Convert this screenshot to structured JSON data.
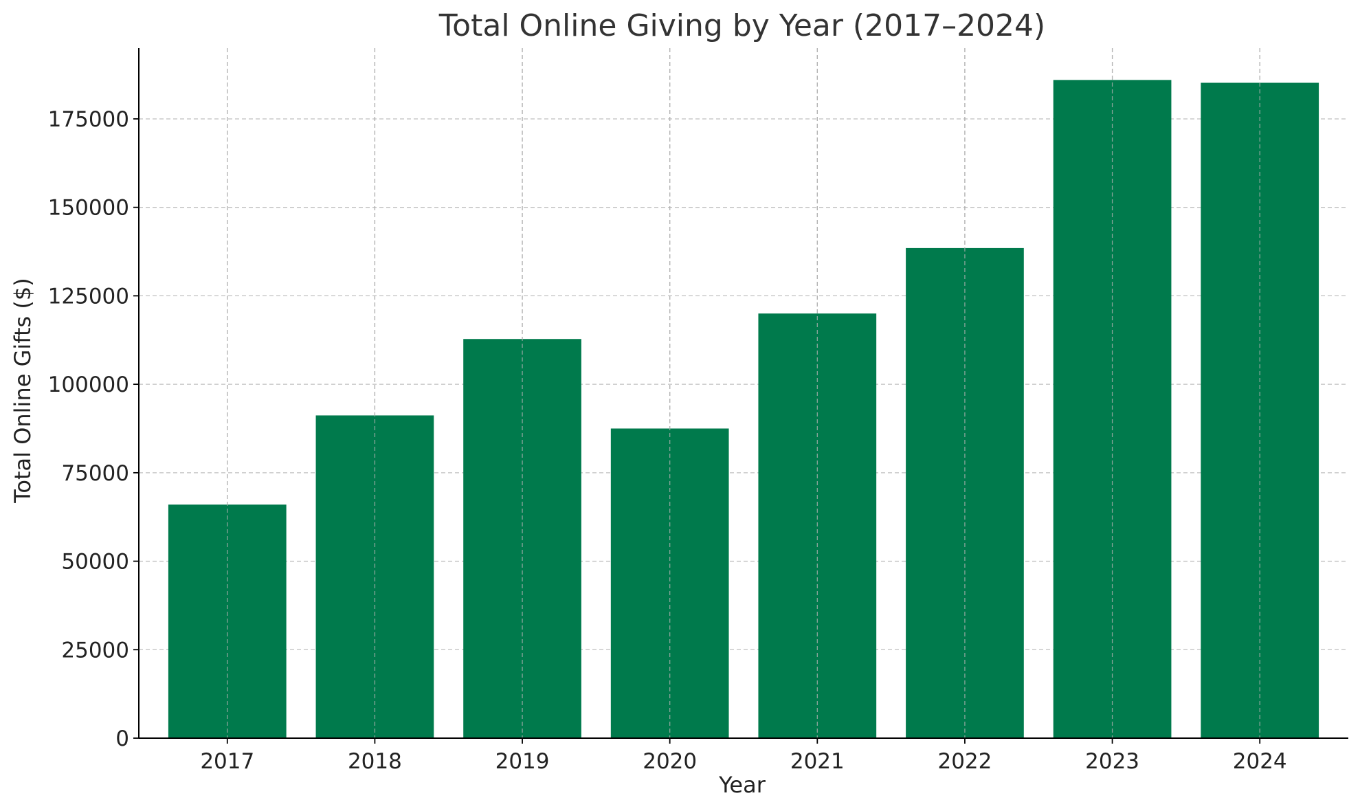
{
  "chart_data": {
    "type": "bar",
    "title": "Total Online Giving by Year (2017–2024)",
    "xlabel": "Year",
    "ylabel": "Total Online Gifts ($)",
    "categories": [
      "2017",
      "2018",
      "2019",
      "2020",
      "2021",
      "2022",
      "2023",
      "2024"
    ],
    "values": [
      66000,
      91200,
      112800,
      87500,
      120000,
      138500,
      186000,
      185200
    ],
    "ylim": [
      0,
      195000
    ],
    "yticks": [
      0,
      25000,
      50000,
      75000,
      100000,
      125000,
      150000,
      175000
    ],
    "bar_color": "#007a4c",
    "grid": true,
    "legend": false
  }
}
